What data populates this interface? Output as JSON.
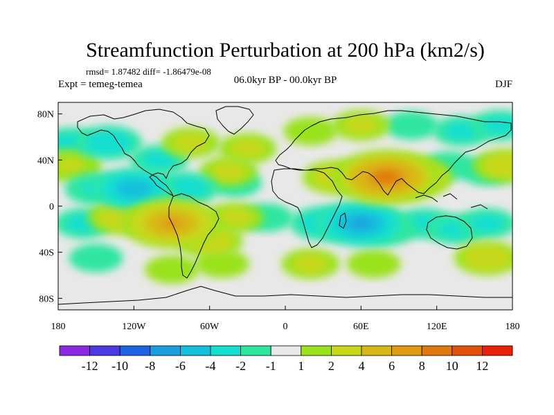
{
  "chart_data": {
    "type": "heatmap",
    "title": "Streamfunction Perturbation at 200 hPa (km2/s)",
    "stats_text": "rmsd= 1.87482 diff= -1.86479e-08",
    "experiment_label": "Expt = temeg-temea",
    "period_label": "06.0kyr BP - 00.0kyr BP",
    "season_label": "DJF",
    "projection": "cylindrical equidistant",
    "lon_range": [
      -180,
      180
    ],
    "lat_range": [
      -90,
      90
    ],
    "x_ticks": [
      {
        "lon": -180,
        "label": "180"
      },
      {
        "lon": -120,
        "label": "120W"
      },
      {
        "lon": -60,
        "label": "60W"
      },
      {
        "lon": 0,
        "label": "0"
      },
      {
        "lon": 60,
        "label": "60E"
      },
      {
        "lon": 120,
        "label": "120E"
      },
      {
        "lon": 180,
        "label": "180"
      }
    ],
    "y_ticks": [
      {
        "lat": 80,
        "label": "80N"
      },
      {
        "lat": 40,
        "label": "40N"
      },
      {
        "lat": 0,
        "label": "0"
      },
      {
        "lat": -40,
        "label": "40S"
      },
      {
        "lat": -80,
        "label": "80S"
      }
    ],
    "colorbar": {
      "colors": [
        "#8a2be2",
        "#4a3ae0",
        "#1e64e0",
        "#1a9ee0",
        "#13bfdc",
        "#14dfd0",
        "#2ee6a0",
        "#e8e8e8",
        "#9ae21e",
        "#c8d81a",
        "#d8b818",
        "#e09a14",
        "#e07810",
        "#e0520c",
        "#e8200a"
      ],
      "labels": [
        "-12",
        "-10",
        "-8",
        "-6",
        "-4",
        "-2",
        "-1",
        "1",
        "2",
        "4",
        "6",
        "8",
        "10",
        "12"
      ]
    },
    "anomalies": [
      {
        "lon": -140,
        "lat": 55,
        "value": -3
      },
      {
        "lon": -170,
        "lat": 55,
        "value": -2
      },
      {
        "lon": -100,
        "lat": 40,
        "value": -2
      },
      {
        "lon": -75,
        "lat": 55,
        "value": 2
      },
      {
        "lon": -30,
        "lat": 50,
        "value": 2
      },
      {
        "lon": -45,
        "lat": 30,
        "value": 2
      },
      {
        "lon": 20,
        "lat": 65,
        "value": 1.5
      },
      {
        "lon": 60,
        "lat": 70,
        "value": 2
      },
      {
        "lon": 100,
        "lat": 70,
        "value": -1.5
      },
      {
        "lon": 140,
        "lat": 65,
        "value": -2
      },
      {
        "lon": 170,
        "lat": 70,
        "value": -2
      },
      {
        "lon": 80,
        "lat": 25,
        "value": 8
      },
      {
        "lon": 100,
        "lat": 25,
        "value": 5
      },
      {
        "lon": 40,
        "lat": 25,
        "value": 3
      },
      {
        "lon": 130,
        "lat": 35,
        "value": -1.5
      },
      {
        "lon": 160,
        "lat": 30,
        "value": -1.5
      },
      {
        "lon": 175,
        "lat": 35,
        "value": 3
      },
      {
        "lon": -170,
        "lat": 35,
        "value": 2.5
      },
      {
        "lon": -120,
        "lat": 15,
        "value": -5
      },
      {
        "lon": -150,
        "lat": 15,
        "value": -2.5
      },
      {
        "lon": -80,
        "lat": 15,
        "value": -3
      },
      {
        "lon": -40,
        "lat": 20,
        "value": -1.5
      },
      {
        "lon": -90,
        "lat": -15,
        "value": 7
      },
      {
        "lon": -130,
        "lat": -10,
        "value": 3
      },
      {
        "lon": -160,
        "lat": -15,
        "value": -2
      },
      {
        "lon": -60,
        "lat": -30,
        "value": 3
      },
      {
        "lon": -40,
        "lat": -10,
        "value": 2
      },
      {
        "lon": -15,
        "lat": -10,
        "value": -1.5
      },
      {
        "lon": 30,
        "lat": -15,
        "value": -3
      },
      {
        "lon": 60,
        "lat": -15,
        "value": -6
      },
      {
        "lon": 80,
        "lat": -20,
        "value": -2.5
      },
      {
        "lon": 110,
        "lat": -15,
        "value": -2
      },
      {
        "lon": 135,
        "lat": -20,
        "value": -2
      },
      {
        "lon": 160,
        "lat": -15,
        "value": -2
      },
      {
        "lon": -150,
        "lat": -45,
        "value": -1.5
      },
      {
        "lon": -90,
        "lat": -55,
        "value": 1.5
      },
      {
        "lon": -50,
        "lat": -50,
        "value": 1.5
      },
      {
        "lon": 20,
        "lat": -50,
        "value": 2
      },
      {
        "lon": 70,
        "lat": -50,
        "value": 1.5
      },
      {
        "lon": 160,
        "lat": -45,
        "value": 3
      }
    ]
  }
}
